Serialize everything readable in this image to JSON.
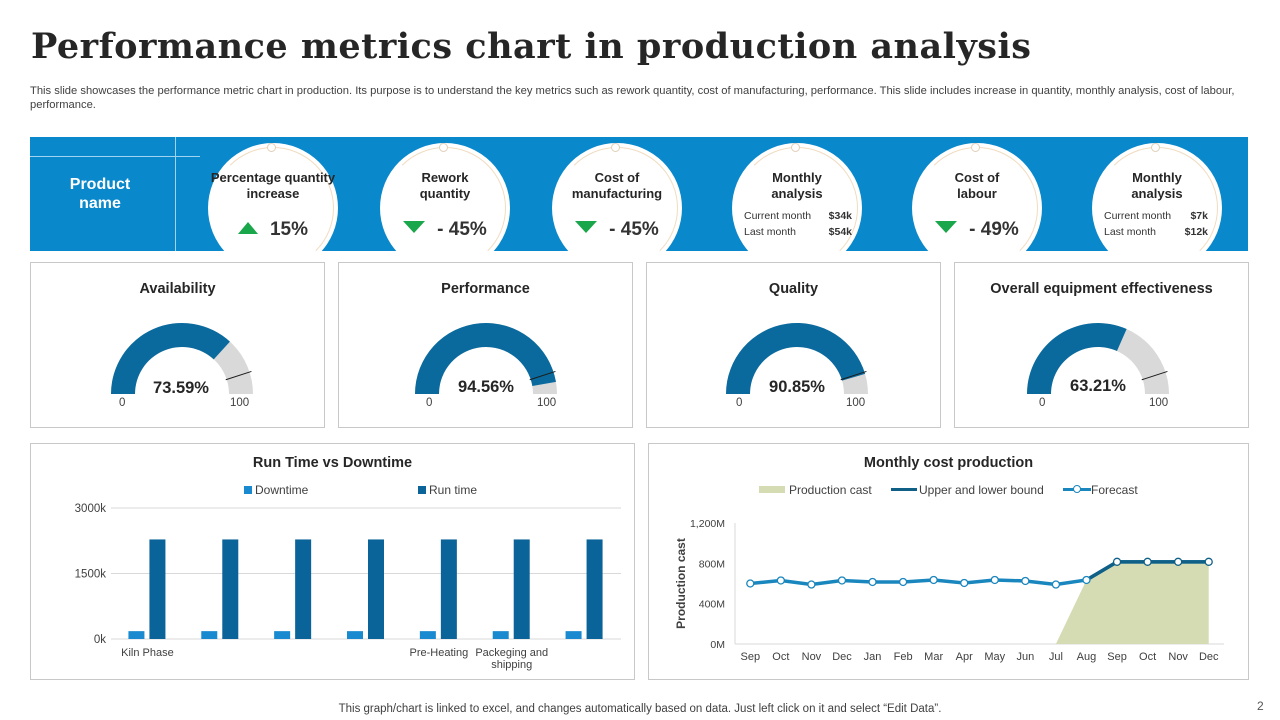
{
  "header": {
    "title": "Performance metrics chart in production analysis",
    "subtitle": "This slide showcases the performance metric chart in production. Its purpose is to understand the key metrics such as rework quantity, cost of manufacturing, performance. This slide includes increase in quantity, monthly analysis, cost of labour, performance."
  },
  "kpi_band": {
    "product_label": "Product name",
    "band_color": "#0a88cc",
    "items": [
      {
        "label": "Percentage quantity increase",
        "trend": "up",
        "value": "15%"
      },
      {
        "label": "Rework quantity",
        "trend": "down",
        "value": "- 45%"
      },
      {
        "label": "Cost of manufacturing",
        "trend": "down",
        "value": "- 45%"
      },
      {
        "label": "Monthly analysis",
        "rows": [
          {
            "name": "Current month",
            "value": "$34k"
          },
          {
            "name": "Last month",
            "value": "$54k"
          }
        ]
      },
      {
        "label": "Cost of labour",
        "trend": "down",
        "value": "- 49%"
      },
      {
        "label": "Monthly analysis",
        "rows": [
          {
            "name": "Current month",
            "value": "$7k"
          },
          {
            "name": "Last month",
            "value": "$12k"
          }
        ]
      }
    ]
  },
  "gauges": [
    {
      "title": "Availability",
      "value": 73.59,
      "display": "73.59%",
      "min": "0",
      "max": "100"
    },
    {
      "title": "Performance",
      "value": 94.56,
      "display": "94.56%",
      "min": "0",
      "max": "100"
    },
    {
      "title": "Quality",
      "value": 90.85,
      "display": "90.85%",
      "min": "0",
      "max": "100"
    },
    {
      "title": "Overall equipment effectiveness",
      "value": 63.21,
      "display": "63.21%",
      "min": "0",
      "max": "100"
    }
  ],
  "colors": {
    "gauge_fill": "#0a6a9e",
    "gauge_track": "#d9d9d9",
    "downtime": "#1a8ad0",
    "runtime": "#0a6399",
    "area": "#d5dcb4",
    "line": "#1a86be",
    "bound": "#0f5f86",
    "positive": "#1aa64a"
  },
  "chart_data": [
    {
      "type": "bar",
      "title": "Run Time vs Downtime",
      "categories": [
        "Kiln Phase",
        "",
        "",
        "",
        "Pre-Heating",
        "Packeging and shipping",
        ""
      ],
      "series": [
        {
          "name": "Downtime",
          "values": [
            180,
            180,
            180,
            180,
            180,
            180,
            180
          ]
        },
        {
          "name": "Run time",
          "values": [
            2280,
            2280,
            2280,
            2280,
            2280,
            2280,
            2280
          ]
        }
      ],
      "yticks": [
        "0k",
        "1500k",
        "3000k"
      ],
      "ylim": [
        0,
        3000
      ],
      "legend": "top",
      "grid": true
    },
    {
      "type": "line",
      "title": "Monthly cost production",
      "ylabel": "Production cast",
      "categories": [
        "Sep",
        "Oct",
        "Nov",
        "Dec",
        "Jan",
        "Feb",
        "Mar",
        "Apr",
        "May",
        "Jun",
        "Jul",
        "Aug",
        "Sep",
        "Oct",
        "Nov",
        "Dec"
      ],
      "series": [
        {
          "name": "Production cast",
          "kind": "area",
          "values": [
            0,
            0,
            0,
            0,
            0,
            0,
            0,
            0,
            0,
            0,
            0,
            635,
            815,
            815,
            815,
            815
          ]
        },
        {
          "name": "Upper and lower bound",
          "kind": "line",
          "values": [
            null,
            null,
            null,
            null,
            null,
            null,
            null,
            null,
            null,
            null,
            null,
            635,
            815,
            815,
            815,
            815
          ]
        },
        {
          "name": "Forecast",
          "kind": "line-marker",
          "values": [
            600,
            630,
            590,
            630,
            615,
            615,
            635,
            605,
            635,
            625,
            590,
            635,
            815,
            815,
            815,
            815
          ]
        }
      ],
      "yticks": [
        "0M",
        "400M",
        "800M",
        "1,200M"
      ],
      "ylim": [
        0,
        1200
      ],
      "legend": "top"
    }
  ],
  "footer": {
    "note": "This graph/chart is linked to excel, and changes automatically based on data. Just left click on it and select “Edit Data”.",
    "page_number": "2"
  }
}
